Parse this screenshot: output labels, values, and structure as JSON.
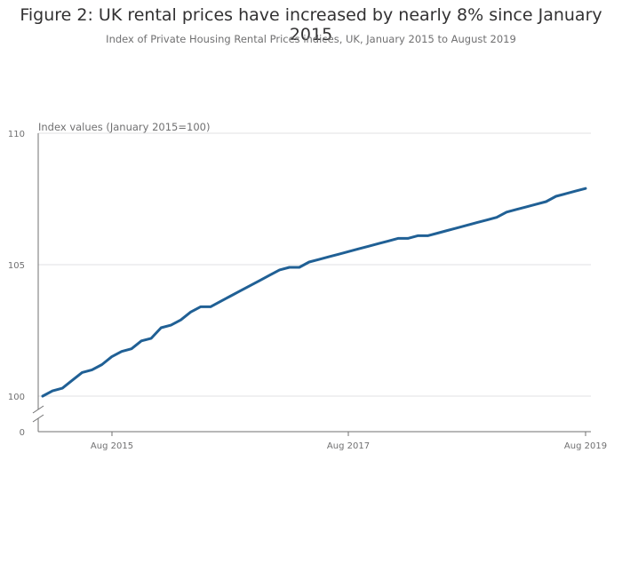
{
  "chart_data": {
    "type": "line",
    "title": "Figure 2: UK rental prices have increased by nearly 8% since January 2015",
    "subtitle": "Index of Private Housing Rental Prices indices, UK, January 2015 to August 2019",
    "ylabel": "Index values (January 2015=100)",
    "xlabel": "",
    "ylim": [
      100,
      110
    ],
    "y_axis_break": true,
    "yticks": [
      "110",
      "105",
      "100"
    ],
    "y_zero_label": "0",
    "xticks": [
      "Aug 2015",
      "Aug 2017",
      "Aug 2019"
    ],
    "grid": true,
    "color": "#206095",
    "x": [
      "2015-01",
      "2015-02",
      "2015-03",
      "2015-04",
      "2015-05",
      "2015-06",
      "2015-07",
      "2015-08",
      "2015-09",
      "2015-10",
      "2015-11",
      "2015-12",
      "2016-01",
      "2016-02",
      "2016-03",
      "2016-04",
      "2016-05",
      "2016-06",
      "2016-07",
      "2016-08",
      "2016-09",
      "2016-10",
      "2016-11",
      "2016-12",
      "2017-01",
      "2017-02",
      "2017-03",
      "2017-04",
      "2017-05",
      "2017-06",
      "2017-07",
      "2017-08",
      "2017-09",
      "2017-10",
      "2017-11",
      "2017-12",
      "2018-01",
      "2018-02",
      "2018-03",
      "2018-04",
      "2018-05",
      "2018-06",
      "2018-07",
      "2018-08",
      "2018-09",
      "2018-10",
      "2018-11",
      "2018-12",
      "2019-01",
      "2019-02",
      "2019-03",
      "2019-04",
      "2019-05",
      "2019-06",
      "2019-07",
      "2019-08"
    ],
    "values": [
      100.0,
      100.2,
      100.3,
      100.6,
      100.9,
      101.0,
      101.2,
      101.5,
      101.7,
      101.8,
      102.1,
      102.2,
      102.6,
      102.7,
      102.9,
      103.2,
      103.4,
      103.4,
      103.6,
      103.8,
      104.0,
      104.2,
      104.4,
      104.6,
      104.8,
      104.9,
      104.9,
      105.1,
      105.2,
      105.3,
      105.4,
      105.5,
      105.6,
      105.7,
      105.8,
      105.9,
      106.0,
      106.0,
      106.1,
      106.1,
      106.2,
      106.3,
      106.4,
      106.5,
      106.6,
      106.7,
      106.8,
      107.0,
      107.1,
      107.2,
      107.3,
      107.4,
      107.6,
      107.7,
      107.8,
      107.9
    ]
  }
}
